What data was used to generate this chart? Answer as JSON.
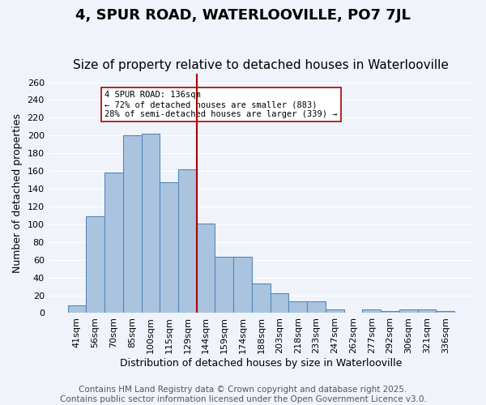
{
  "title": "4, SPUR ROAD, WATERLOOVILLE, PO7 7JL",
  "subtitle": "Size of property relative to detached houses in Waterlooville",
  "xlabel": "Distribution of detached houses by size in Waterlooville",
  "ylabel": "Number of detached properties",
  "categories": [
    "41sqm",
    "56sqm",
    "70sqm",
    "85sqm",
    "100sqm",
    "115sqm",
    "129sqm",
    "144sqm",
    "159sqm",
    "174sqm",
    "188sqm",
    "203sqm",
    "218sqm",
    "233sqm",
    "247sqm",
    "262sqm",
    "277sqm",
    "292sqm",
    "306sqm",
    "321sqm",
    "336sqm"
  ],
  "values": [
    9,
    109,
    158,
    200,
    202,
    147,
    162,
    101,
    63,
    63,
    33,
    22,
    13,
    13,
    4,
    0,
    4,
    2,
    4,
    4,
    2
  ],
  "bar_color": "#aac4e0",
  "bar_edge_color": "#5588bb",
  "vline_x": 6.5,
  "vline_color": "#aa0000",
  "annotation_text": "4 SPUR ROAD: 136sqm\n← 72% of detached houses are smaller (883)\n28% of semi-detached houses are larger (339) →",
  "annotation_box_color": "#ffffff",
  "annotation_box_edge_color": "#aa0000",
  "ylim": [
    0,
    270
  ],
  "yticks": [
    0,
    20,
    40,
    60,
    80,
    100,
    120,
    140,
    160,
    180,
    200,
    220,
    240,
    260
  ],
  "footer_line1": "Contains HM Land Registry data © Crown copyright and database right 2025.",
  "footer_line2": "Contains public sector information licensed under the Open Government Licence v3.0.",
  "background_color": "#f0f4fa",
  "grid_color": "#ffffff",
  "title_fontsize": 13,
  "subtitle_fontsize": 11,
  "label_fontsize": 9,
  "tick_fontsize": 8,
  "footer_fontsize": 7.5
}
